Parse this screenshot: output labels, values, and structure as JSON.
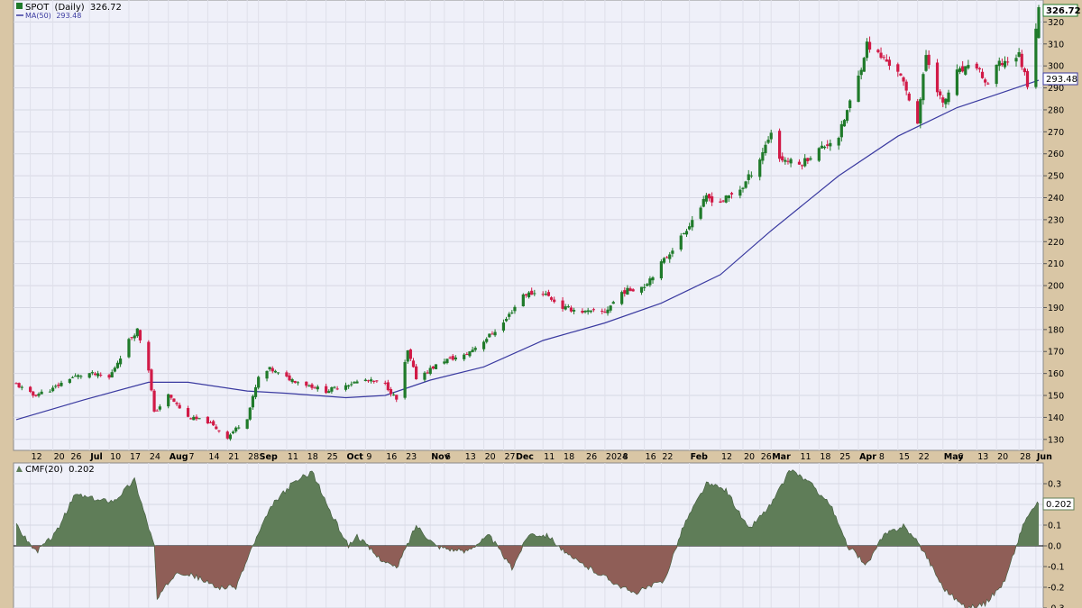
{
  "price_panel": {
    "symbol": "SPOT",
    "period": "(Daily)",
    "last_price": "326.72",
    "ma_label": "MA(50)",
    "ma_value": "293.48"
  },
  "cmf_panel": {
    "label": "CMF(20)",
    "value": "0.202"
  },
  "colors": {
    "panel_bg": "#eff0f9",
    "frame_bg": "#d9c6a5",
    "up_candle": "#1f7a2a",
    "down_candle": "#d11a47",
    "ma_line": "#3a3aa0",
    "cmf_positive": "#5f7d58",
    "cmf_negative": "#8f5e57"
  },
  "chart_data": [
    {
      "type": "candlestick",
      "title": "SPOT (Daily) 326.72",
      "ylim": [
        125,
        330
      ],
      "yticks": [
        130,
        140,
        150,
        160,
        170,
        180,
        190,
        200,
        210,
        220,
        230,
        240,
        250,
        260,
        270,
        280,
        290,
        300,
        310,
        320
      ],
      "x_start_date": "2023-06-07",
      "x_tick_labels": [
        {
          "label": "12",
          "date": "2023-06-12"
        },
        {
          "label": "20",
          "date": "2023-06-20"
        },
        {
          "label": "26",
          "date": "2023-06-26"
        },
        {
          "label": "Jul",
          "date": "2023-07-03"
        },
        {
          "label": "10",
          "date": "2023-07-10"
        },
        {
          "label": "17",
          "date": "2023-07-17"
        },
        {
          "label": "24",
          "date": "2023-07-24"
        },
        {
          "label": "Aug",
          "date": "2023-07-31"
        },
        {
          "label": "7",
          "date": "2023-08-07"
        },
        {
          "label": "14",
          "date": "2023-08-14"
        },
        {
          "label": "21",
          "date": "2023-08-21"
        },
        {
          "label": "28",
          "date": "2023-08-28"
        },
        {
          "label": "Sep",
          "date": "2023-09-01"
        },
        {
          "label": "11",
          "date": "2023-09-11"
        },
        {
          "label": "18",
          "date": "2023-09-18"
        },
        {
          "label": "25",
          "date": "2023-09-25"
        },
        {
          "label": "Oct",
          "date": "2023-10-02"
        },
        {
          "label": "9",
          "date": "2023-10-09"
        },
        {
          "label": "16",
          "date": "2023-10-16"
        },
        {
          "label": "23",
          "date": "2023-10-23"
        },
        {
          "label": "Nov",
          "date": "2023-11-01"
        },
        {
          "label": "6",
          "date": "2023-11-06"
        },
        {
          "label": "13",
          "date": "2023-11-13"
        },
        {
          "label": "20",
          "date": "2023-11-20"
        },
        {
          "label": "27",
          "date": "2023-11-27"
        },
        {
          "label": "Dec",
          "date": "2023-12-01"
        },
        {
          "label": "11",
          "date": "2023-12-11"
        },
        {
          "label": "18",
          "date": "2023-12-18"
        },
        {
          "label": "26",
          "date": "2023-12-26"
        },
        {
          "label": "2024",
          "date": "2024-01-02"
        },
        {
          "label": "8",
          "date": "2024-01-08"
        },
        {
          "label": "16",
          "date": "2024-01-16"
        },
        {
          "label": "22",
          "date": "2024-01-22"
        },
        {
          "label": "Feb",
          "date": "2024-02-01"
        },
        {
          "label": "12",
          "date": "2024-02-12"
        },
        {
          "label": "20",
          "date": "2024-02-20"
        },
        {
          "label": "26",
          "date": "2024-02-26"
        },
        {
          "label": "Mar",
          "date": "2024-03-01"
        },
        {
          "label": "11",
          "date": "2024-03-11"
        },
        {
          "label": "18",
          "date": "2024-03-18"
        },
        {
          "label": "25",
          "date": "2024-03-25"
        },
        {
          "label": "Apr",
          "date": "2024-04-01"
        },
        {
          "label": "8",
          "date": "2024-04-08"
        },
        {
          "label": "15",
          "date": "2024-04-15"
        },
        {
          "label": "22",
          "date": "2024-04-22"
        },
        {
          "label": "May",
          "date": "2024-05-01"
        },
        {
          "label": "6",
          "date": "2024-05-06"
        },
        {
          "label": "13",
          "date": "2024-05-13"
        },
        {
          "label": "20",
          "date": "2024-05-20"
        },
        {
          "label": "28",
          "date": "2024-05-28"
        },
        {
          "label": "Jun",
          "date": "2024-06-03"
        }
      ],
      "ohlc_close_path": [
        {
          "date": "2023-06-07",
          "close": 155
        },
        {
          "date": "2023-06-13",
          "close": 150
        },
        {
          "date": "2023-06-20",
          "close": 153
        },
        {
          "date": "2023-06-26",
          "close": 158
        },
        {
          "date": "2023-07-03",
          "close": 160
        },
        {
          "date": "2023-07-10",
          "close": 158
        },
        {
          "date": "2023-07-17",
          "close": 175
        },
        {
          "date": "2023-07-20",
          "close": 180
        },
        {
          "date": "2023-07-24",
          "close": 162
        },
        {
          "date": "2023-07-26",
          "close": 142
        },
        {
          "date": "2023-07-31",
          "close": 150
        },
        {
          "date": "2023-08-07",
          "close": 140
        },
        {
          "date": "2023-08-14",
          "close": 138
        },
        {
          "date": "2023-08-21",
          "close": 131
        },
        {
          "date": "2023-08-28",
          "close": 140
        },
        {
          "date": "2023-09-01",
          "close": 158
        },
        {
          "date": "2023-09-05",
          "close": 162
        },
        {
          "date": "2023-09-11",
          "close": 158
        },
        {
          "date": "2023-09-18",
          "close": 155
        },
        {
          "date": "2023-09-25",
          "close": 152
        },
        {
          "date": "2023-10-02",
          "close": 155
        },
        {
          "date": "2023-10-09",
          "close": 157
        },
        {
          "date": "2023-10-16",
          "close": 155
        },
        {
          "date": "2023-10-20",
          "close": 148
        },
        {
          "date": "2023-10-24",
          "close": 170
        },
        {
          "date": "2023-10-27",
          "close": 158
        },
        {
          "date": "2023-11-01",
          "close": 162
        },
        {
          "date": "2023-11-06",
          "close": 166
        },
        {
          "date": "2023-11-13",
          "close": 168
        },
        {
          "date": "2023-11-20",
          "close": 175
        },
        {
          "date": "2023-11-27",
          "close": 183
        },
        {
          "date": "2023-12-04",
          "close": 196
        },
        {
          "date": "2023-12-11",
          "close": 197
        },
        {
          "date": "2023-12-18",
          "close": 190
        },
        {
          "date": "2023-12-26",
          "close": 188
        },
        {
          "date": "2024-01-02",
          "close": 188
        },
        {
          "date": "2024-01-08",
          "close": 197
        },
        {
          "date": "2024-01-16",
          "close": 200
        },
        {
          "date": "2024-01-22",
          "close": 210
        },
        {
          "date": "2024-01-29",
          "close": 222
        },
        {
          "date": "2024-02-07",
          "close": 240
        },
        {
          "date": "2024-02-12",
          "close": 238
        },
        {
          "date": "2024-02-20",
          "close": 245
        },
        {
          "date": "2024-02-26",
          "close": 258
        },
        {
          "date": "2024-03-01",
          "close": 270
        },
        {
          "date": "2024-03-04",
          "close": 258
        },
        {
          "date": "2024-03-11",
          "close": 255
        },
        {
          "date": "2024-03-18",
          "close": 262
        },
        {
          "date": "2024-03-25",
          "close": 268
        },
        {
          "date": "2024-04-01",
          "close": 295
        },
        {
          "date": "2024-04-04",
          "close": 310
        },
        {
          "date": "2024-04-08",
          "close": 305
        },
        {
          "date": "2024-04-15",
          "close": 298
        },
        {
          "date": "2024-04-22",
          "close": 275
        },
        {
          "date": "2024-04-25",
          "close": 305
        },
        {
          "date": "2024-05-01",
          "close": 282
        },
        {
          "date": "2024-05-06",
          "close": 297
        },
        {
          "date": "2024-05-13",
          "close": 300
        },
        {
          "date": "2024-05-17",
          "close": 290
        },
        {
          "date": "2024-05-20",
          "close": 300
        },
        {
          "date": "2024-05-28",
          "close": 305
        },
        {
          "date": "2024-05-31",
          "close": 292
        },
        {
          "date": "2024-06-04",
          "close": 326.72
        }
      ],
      "ma50": [
        {
          "date": "2023-06-07",
          "value": 139
        },
        {
          "date": "2023-07-01",
          "value": 148
        },
        {
          "date": "2023-07-24",
          "value": 156
        },
        {
          "date": "2023-08-07",
          "value": 156
        },
        {
          "date": "2023-08-28",
          "value": 152
        },
        {
          "date": "2023-09-11",
          "value": 151
        },
        {
          "date": "2023-10-02",
          "value": 149
        },
        {
          "date": "2023-10-16",
          "value": 150
        },
        {
          "date": "2023-11-01",
          "value": 157
        },
        {
          "date": "2023-11-20",
          "value": 163
        },
        {
          "date": "2023-12-11",
          "value": 175
        },
        {
          "date": "2024-01-02",
          "value": 183
        },
        {
          "date": "2024-01-22",
          "value": 192
        },
        {
          "date": "2024-02-12",
          "value": 205
        },
        {
          "date": "2024-03-01",
          "value": 225
        },
        {
          "date": "2024-03-25",
          "value": 250
        },
        {
          "date": "2024-04-15",
          "value": 268
        },
        {
          "date": "2024-05-06",
          "value": 281
        },
        {
          "date": "2024-05-20",
          "value": 287
        },
        {
          "date": "2024-06-04",
          "value": 293.48
        }
      ]
    },
    {
      "type": "area",
      "title": "CMF(20) 0.202",
      "ylim": [
        -0.3,
        0.4
      ],
      "yticks": [
        -0.3,
        -0.2,
        -0.1,
        0.0,
        0.1,
        0.2,
        0.3
      ],
      "ytick_labels": [
        "-0.3",
        "-0.2",
        "-0.1",
        "0.0",
        "0.1",
        "0.2",
        "0.3"
      ],
      "series": [
        {
          "values": [
            {
              "date": "2023-06-07",
              "value": 0.1
            },
            {
              "date": "2023-06-14",
              "value": -0.03
            },
            {
              "date": "2023-06-21",
              "value": 0.06
            },
            {
              "date": "2023-06-28",
              "value": 0.25
            },
            {
              "date": "2023-07-06",
              "value": 0.22
            },
            {
              "date": "2023-07-12",
              "value": 0.22
            },
            {
              "date": "2023-07-19",
              "value": 0.32
            },
            {
              "date": "2023-07-26",
              "value": 0.0
            },
            {
              "date": "2023-07-27",
              "value": -0.26
            },
            {
              "date": "2023-08-03",
              "value": -0.12
            },
            {
              "date": "2023-08-10",
              "value": -0.15
            },
            {
              "date": "2023-08-17",
              "value": -0.2
            },
            {
              "date": "2023-08-24",
              "value": -0.2
            },
            {
              "date": "2023-08-30",
              "value": 0.0
            },
            {
              "date": "2023-09-06",
              "value": 0.2
            },
            {
              "date": "2023-09-13",
              "value": 0.3
            },
            {
              "date": "2023-09-20",
              "value": 0.36
            },
            {
              "date": "2023-09-27",
              "value": 0.15
            },
            {
              "date": "2023-10-03",
              "value": 0.0
            },
            {
              "date": "2023-10-06",
              "value": 0.05
            },
            {
              "date": "2023-10-13",
              "value": -0.05
            },
            {
              "date": "2023-10-20",
              "value": -0.11
            },
            {
              "date": "2023-10-27",
              "value": 0.1
            },
            {
              "date": "2023-11-03",
              "value": 0.0
            },
            {
              "date": "2023-11-13",
              "value": -0.03
            },
            {
              "date": "2023-11-22",
              "value": 0.05
            },
            {
              "date": "2023-11-30",
              "value": -0.11
            },
            {
              "date": "2023-12-06",
              "value": 0.06
            },
            {
              "date": "2023-12-13",
              "value": 0.05
            },
            {
              "date": "2023-12-20",
              "value": -0.05
            },
            {
              "date": "2024-01-02",
              "value": -0.15
            },
            {
              "date": "2024-01-12",
              "value": -0.23
            },
            {
              "date": "2024-01-23",
              "value": -0.17
            },
            {
              "date": "2024-01-30",
              "value": 0.1
            },
            {
              "date": "2024-02-07",
              "value": 0.3
            },
            {
              "date": "2024-02-14",
              "value": 0.27
            },
            {
              "date": "2024-02-22",
              "value": 0.08
            },
            {
              "date": "2024-03-01",
              "value": 0.2
            },
            {
              "date": "2024-03-08",
              "value": 0.37
            },
            {
              "date": "2024-03-15",
              "value": 0.3
            },
            {
              "date": "2024-03-22",
              "value": 0.2
            },
            {
              "date": "2024-03-28",
              "value": 0.0
            },
            {
              "date": "2024-04-04",
              "value": -0.09
            },
            {
              "date": "2024-04-10",
              "value": 0.05
            },
            {
              "date": "2024-04-17",
              "value": 0.1
            },
            {
              "date": "2024-04-24",
              "value": -0.02
            },
            {
              "date": "2024-05-01",
              "value": -0.2
            },
            {
              "date": "2024-05-09",
              "value": -0.3
            },
            {
              "date": "2024-05-16",
              "value": -0.28
            },
            {
              "date": "2024-05-23",
              "value": -0.17
            },
            {
              "date": "2024-05-27",
              "value": 0.0
            },
            {
              "date": "2024-05-30",
              "value": 0.12
            },
            {
              "date": "2024-06-03",
              "value": 0.2
            },
            {
              "date": "2024-06-04",
              "value": 0.202
            }
          ]
        }
      ]
    }
  ]
}
